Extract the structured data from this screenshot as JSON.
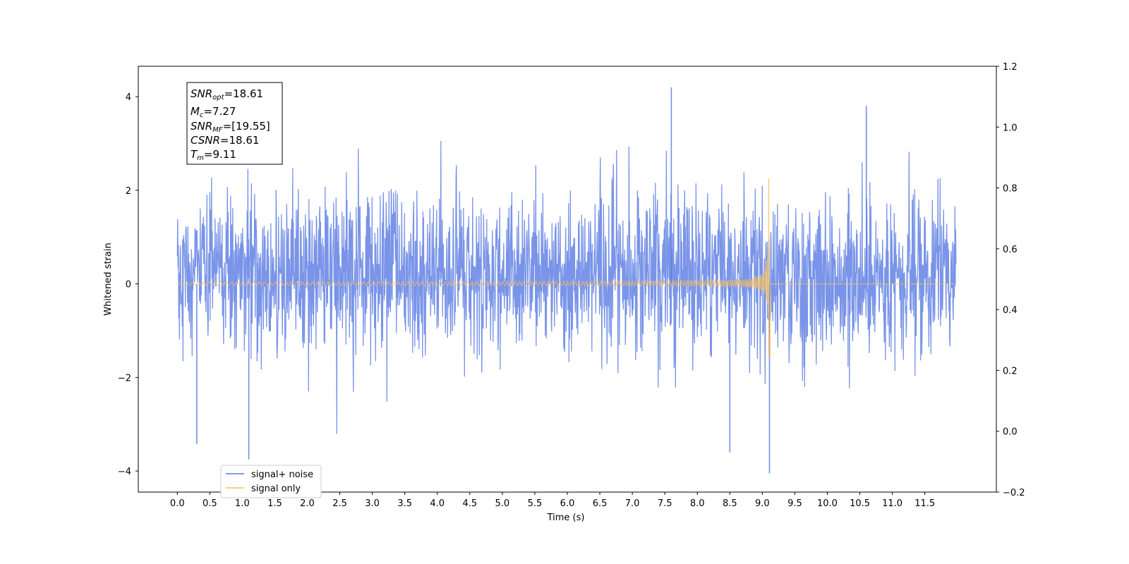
{
  "chart_data": {
    "type": "line",
    "xlabel": "Time (s)",
    "ylabel": "Whitened strain",
    "xlim": [
      -0.6,
      12.6
    ],
    "ylim": [
      -4.45,
      4.65
    ],
    "y2lim": [
      -0.2,
      1.2
    ],
    "xticks": [
      "0.0",
      "0.5",
      "1.0",
      "1.5",
      "2.0",
      "2.5",
      "3.0",
      "3.5",
      "4.0",
      "4.5",
      "5.0",
      "5.5",
      "6.0",
      "6.5",
      "7.0",
      "7.5",
      "8.0",
      "8.5",
      "9.0",
      "9.5",
      "10.0",
      "10.5",
      "11.0",
      "11.5"
    ],
    "yticks": [
      "4",
      "2",
      "0",
      "−2",
      "−4"
    ],
    "y2ticks": [
      "1.2",
      "1.0",
      "0.8",
      "0.6",
      "0.4",
      "0.2",
      "0.0",
      "−0.2"
    ],
    "grid": false,
    "legend_position": "lower-left",
    "series": [
      {
        "name": "signal+ noise",
        "color": "#5b7de3",
        "description": "whitened noise plus injected chirp, 0 to 12 s",
        "x_range": [
          0.0,
          11.98
        ],
        "typical_envelope": [
          -1.9,
          2.4
        ],
        "extremes": [
          {
            "x": 0.3,
            "y": -3.42
          },
          {
            "x": 1.1,
            "y": -3.75
          },
          {
            "x": 7.6,
            "y": 4.2
          },
          {
            "x": 8.5,
            "y": -3.6
          },
          {
            "x": 9.11,
            "y": -4.05
          },
          {
            "x": 10.6,
            "y": 3.8
          }
        ]
      },
      {
        "name": "signal only",
        "color": "#f5c060",
        "description": "chirp waveform, amplitude grows to merger at Tm then drops to zero",
        "x_range": [
          0.0,
          11.98
        ],
        "merger_time": 9.11,
        "peak_positive": 2.25,
        "peak_negative": -1.55,
        "initial_amplitude": 0.05
      }
    ]
  },
  "annotation": {
    "lines": [
      {
        "base": "SNR",
        "sub": "opt",
        "value": "=18.61"
      },
      {
        "base": "M",
        "sub": "c",
        "value": "=7.27"
      },
      {
        "base": "SNR",
        "sub": "MF",
        "value": "=[19.55]"
      },
      {
        "base": "CSNR",
        "sub": "",
        "value": "=18.61"
      },
      {
        "base": "T",
        "sub": "m",
        "value": "=9.11"
      }
    ]
  }
}
